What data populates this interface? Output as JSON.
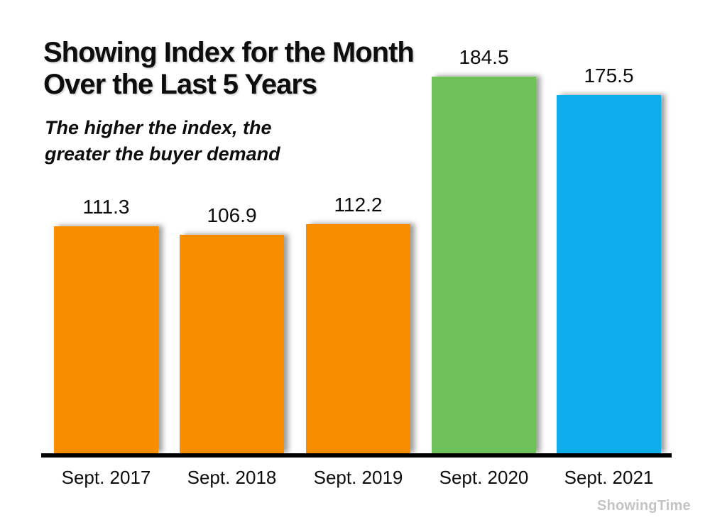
{
  "header": {
    "title": "Showing Index for the Month\nOver the Last 5 Years",
    "subtitle": "The higher the index, the\ngreater the buyer demand"
  },
  "chart_data": {
    "type": "bar",
    "title": "Showing Index for the Month Over the Last 5 Years",
    "subtitle": "The higher the index, the greater the buyer demand",
    "categories": [
      "Sept. 2017",
      "Sept. 2018",
      "Sept. 2019",
      "Sept. 2020",
      "Sept. 2021"
    ],
    "values": [
      111.3,
      106.9,
      112.2,
      184.5,
      175.5
    ],
    "value_labels": [
      "111.3",
      "106.9",
      "112.2",
      "184.5",
      "175.5"
    ],
    "bar_colors": [
      "#f98d00",
      "#f98d00",
      "#f98d00",
      "#6fc25a",
      "#0facec"
    ],
    "xlabel": "",
    "ylabel": "",
    "ylim": [
      0,
      184.5
    ],
    "grid": false,
    "legend": false,
    "axis_color": "#000000"
  },
  "footer": {
    "watermark": "ShowingTime",
    "watermark_color": "#c3c3c3"
  }
}
